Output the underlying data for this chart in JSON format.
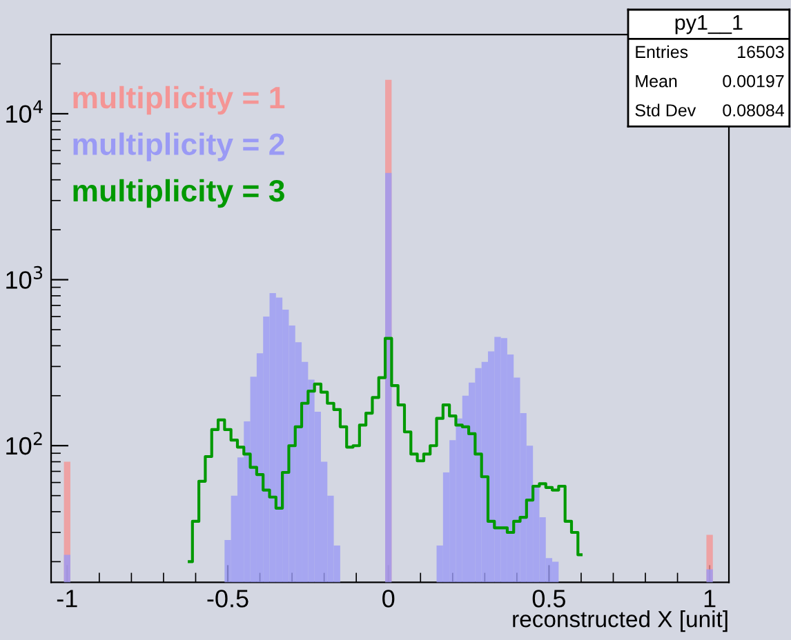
{
  "chart_data": {
    "type": "histogram",
    "xlabel": "reconstructed X [unit]",
    "bins": [
      -1.05,
      -1.03,
      -1.01,
      -0.99,
      -0.97,
      -0.95,
      -0.93,
      -0.91,
      -0.89,
      -0.87,
      -0.85,
      -0.83,
      -0.81,
      -0.79,
      -0.77,
      -0.75,
      -0.73,
      -0.71,
      -0.69,
      -0.67,
      -0.65,
      -0.63,
      -0.61,
      -0.59,
      -0.57,
      -0.55,
      -0.53,
      -0.51,
      -0.49,
      -0.47,
      -0.45,
      -0.43,
      -0.41,
      -0.39,
      -0.37,
      -0.35,
      -0.33,
      -0.31,
      -0.29,
      -0.27,
      -0.25,
      -0.23,
      -0.21,
      -0.19,
      -0.17,
      -0.15,
      -0.13,
      -0.11,
      -0.09,
      -0.07,
      -0.05,
      -0.03,
      -0.01,
      0.01,
      0.03,
      0.05,
      0.07,
      0.09,
      0.11,
      0.13,
      0.15,
      0.17,
      0.19,
      0.21,
      0.23,
      0.25,
      0.27,
      0.29,
      0.31,
      0.33,
      0.35,
      0.37,
      0.39,
      0.41,
      0.43,
      0.45,
      0.47,
      0.49,
      0.51,
      0.53,
      0.55,
      0.57,
      0.59,
      0.61,
      0.63,
      0.65,
      0.67,
      0.69,
      0.71,
      0.73,
      0.75,
      0.77,
      0.79,
      0.81,
      0.83,
      0.85,
      0.87,
      0.89,
      0.91,
      0.93,
      0.95,
      0.97,
      0.99,
      1.01,
      1.03,
      1.05
    ],
    "series": [
      {
        "name": "multiplicity = 1",
        "color": "#f49595",
        "values": [
          null,
          null,
          80,
          null,
          null,
          null,
          null,
          null,
          null,
          null,
          null,
          null,
          null,
          null,
          null,
          null,
          null,
          null,
          null,
          null,
          null,
          null,
          null,
          null,
          null,
          null,
          null,
          null,
          null,
          null,
          null,
          null,
          null,
          null,
          null,
          null,
          null,
          null,
          null,
          null,
          null,
          null,
          null,
          null,
          null,
          null,
          null,
          null,
          null,
          null,
          null,
          null,
          16000,
          null,
          null,
          null,
          null,
          null,
          null,
          null,
          null,
          null,
          null,
          null,
          null,
          null,
          null,
          null,
          null,
          null,
          null,
          null,
          null,
          null,
          null,
          null,
          null,
          null,
          null,
          null,
          null,
          null,
          null,
          null,
          null,
          null,
          null,
          null,
          null,
          null,
          null,
          null,
          null,
          null,
          null,
          null,
          null,
          null,
          null,
          null,
          null,
          null,
          29,
          null,
          null
        ]
      },
      {
        "name": "multiplicity = 2",
        "color": "#9a9af5",
        "values": [
          null,
          null,
          22,
          null,
          null,
          null,
          null,
          null,
          null,
          null,
          null,
          null,
          null,
          null,
          null,
          null,
          null,
          null,
          null,
          null,
          null,
          null,
          null,
          null,
          null,
          null,
          null,
          27,
          50,
          85,
          140,
          260,
          360,
          600,
          830,
          780,
          660,
          530,
          420,
          320,
          250,
          160,
          80,
          50,
          25,
          null,
          null,
          null,
          null,
          null,
          null,
          null,
          4400,
          null,
          null,
          null,
          null,
          null,
          null,
          null,
          25,
          69,
          108,
          146,
          200,
          240,
          293,
          320,
          370,
          452,
          445,
          354,
          257,
          157,
          100,
          57,
          37,
          21,
          20,
          null,
          null,
          null,
          null,
          null,
          null,
          null,
          null,
          null,
          null,
          null,
          null,
          null,
          null,
          null,
          null,
          null,
          null,
          null,
          null,
          null,
          null,
          null,
          18,
          null,
          null
        ]
      },
      {
        "name": "multiplicity = 3",
        "type": "step",
        "color": "#009900",
        "x": [
          -0.62,
          -0.6,
          -0.58,
          -0.56,
          -0.54,
          -0.52,
          -0.5,
          -0.48,
          -0.46,
          -0.44,
          -0.42,
          -0.4,
          -0.38,
          -0.36,
          -0.34,
          -0.32,
          -0.3,
          -0.28,
          -0.26,
          -0.24,
          -0.22,
          -0.2,
          -0.18,
          -0.16,
          -0.14,
          -0.12,
          -0.1,
          -0.08,
          -0.06,
          -0.04,
          -0.02,
          0,
          0.02,
          0.04,
          0.06,
          0.08,
          0.1,
          0.12,
          0.14,
          0.16,
          0.18,
          0.2,
          0.22,
          0.24,
          0.26,
          0.28,
          0.3,
          0.32,
          0.34,
          0.36,
          0.38,
          0.4,
          0.42,
          0.44,
          0.46,
          0.48,
          0.5,
          0.52,
          0.54,
          0.56,
          0.58,
          0.6
        ],
        "values": [
          20,
          35,
          61,
          86,
          125,
          143,
          125,
          108,
          98,
          89,
          74,
          67,
          54,
          49,
          42,
          69,
          100,
          130,
          180,
          213,
          235,
          210,
          180,
          165,
          130,
          98,
          100,
          133,
          157,
          195,
          257,
          443,
          230,
          176,
          121,
          89,
          81,
          89,
          100,
          146,
          176,
          151,
          133,
          130,
          118,
          89,
          65,
          35,
          32,
          32,
          30,
          35,
          37,
          47,
          57,
          59,
          56,
          54,
          57,
          35,
          30,
          22
        ]
      }
    ],
    "annotations": [
      "py1__1",
      "Entries",
      "16503",
      "Mean",
      "0.00197",
      "Std Dev",
      "0.08084"
    ],
    "xlim": [
      -1.05,
      1.06
    ],
    "xticks": [
      -1,
      -0.5,
      0,
      0.5,
      1
    ],
    "log": true,
    "ylim": [
      15,
      30000
    ],
    "yticks": [
      {
        "value": 100,
        "label": "10$^{2}$"
      },
      {
        "value": 1000,
        "label": "10$^{3}$"
      },
      {
        "value": 10000,
        "label": "10$^{4}$"
      }
    ],
    "grid": false,
    "legend": "top left"
  }
}
